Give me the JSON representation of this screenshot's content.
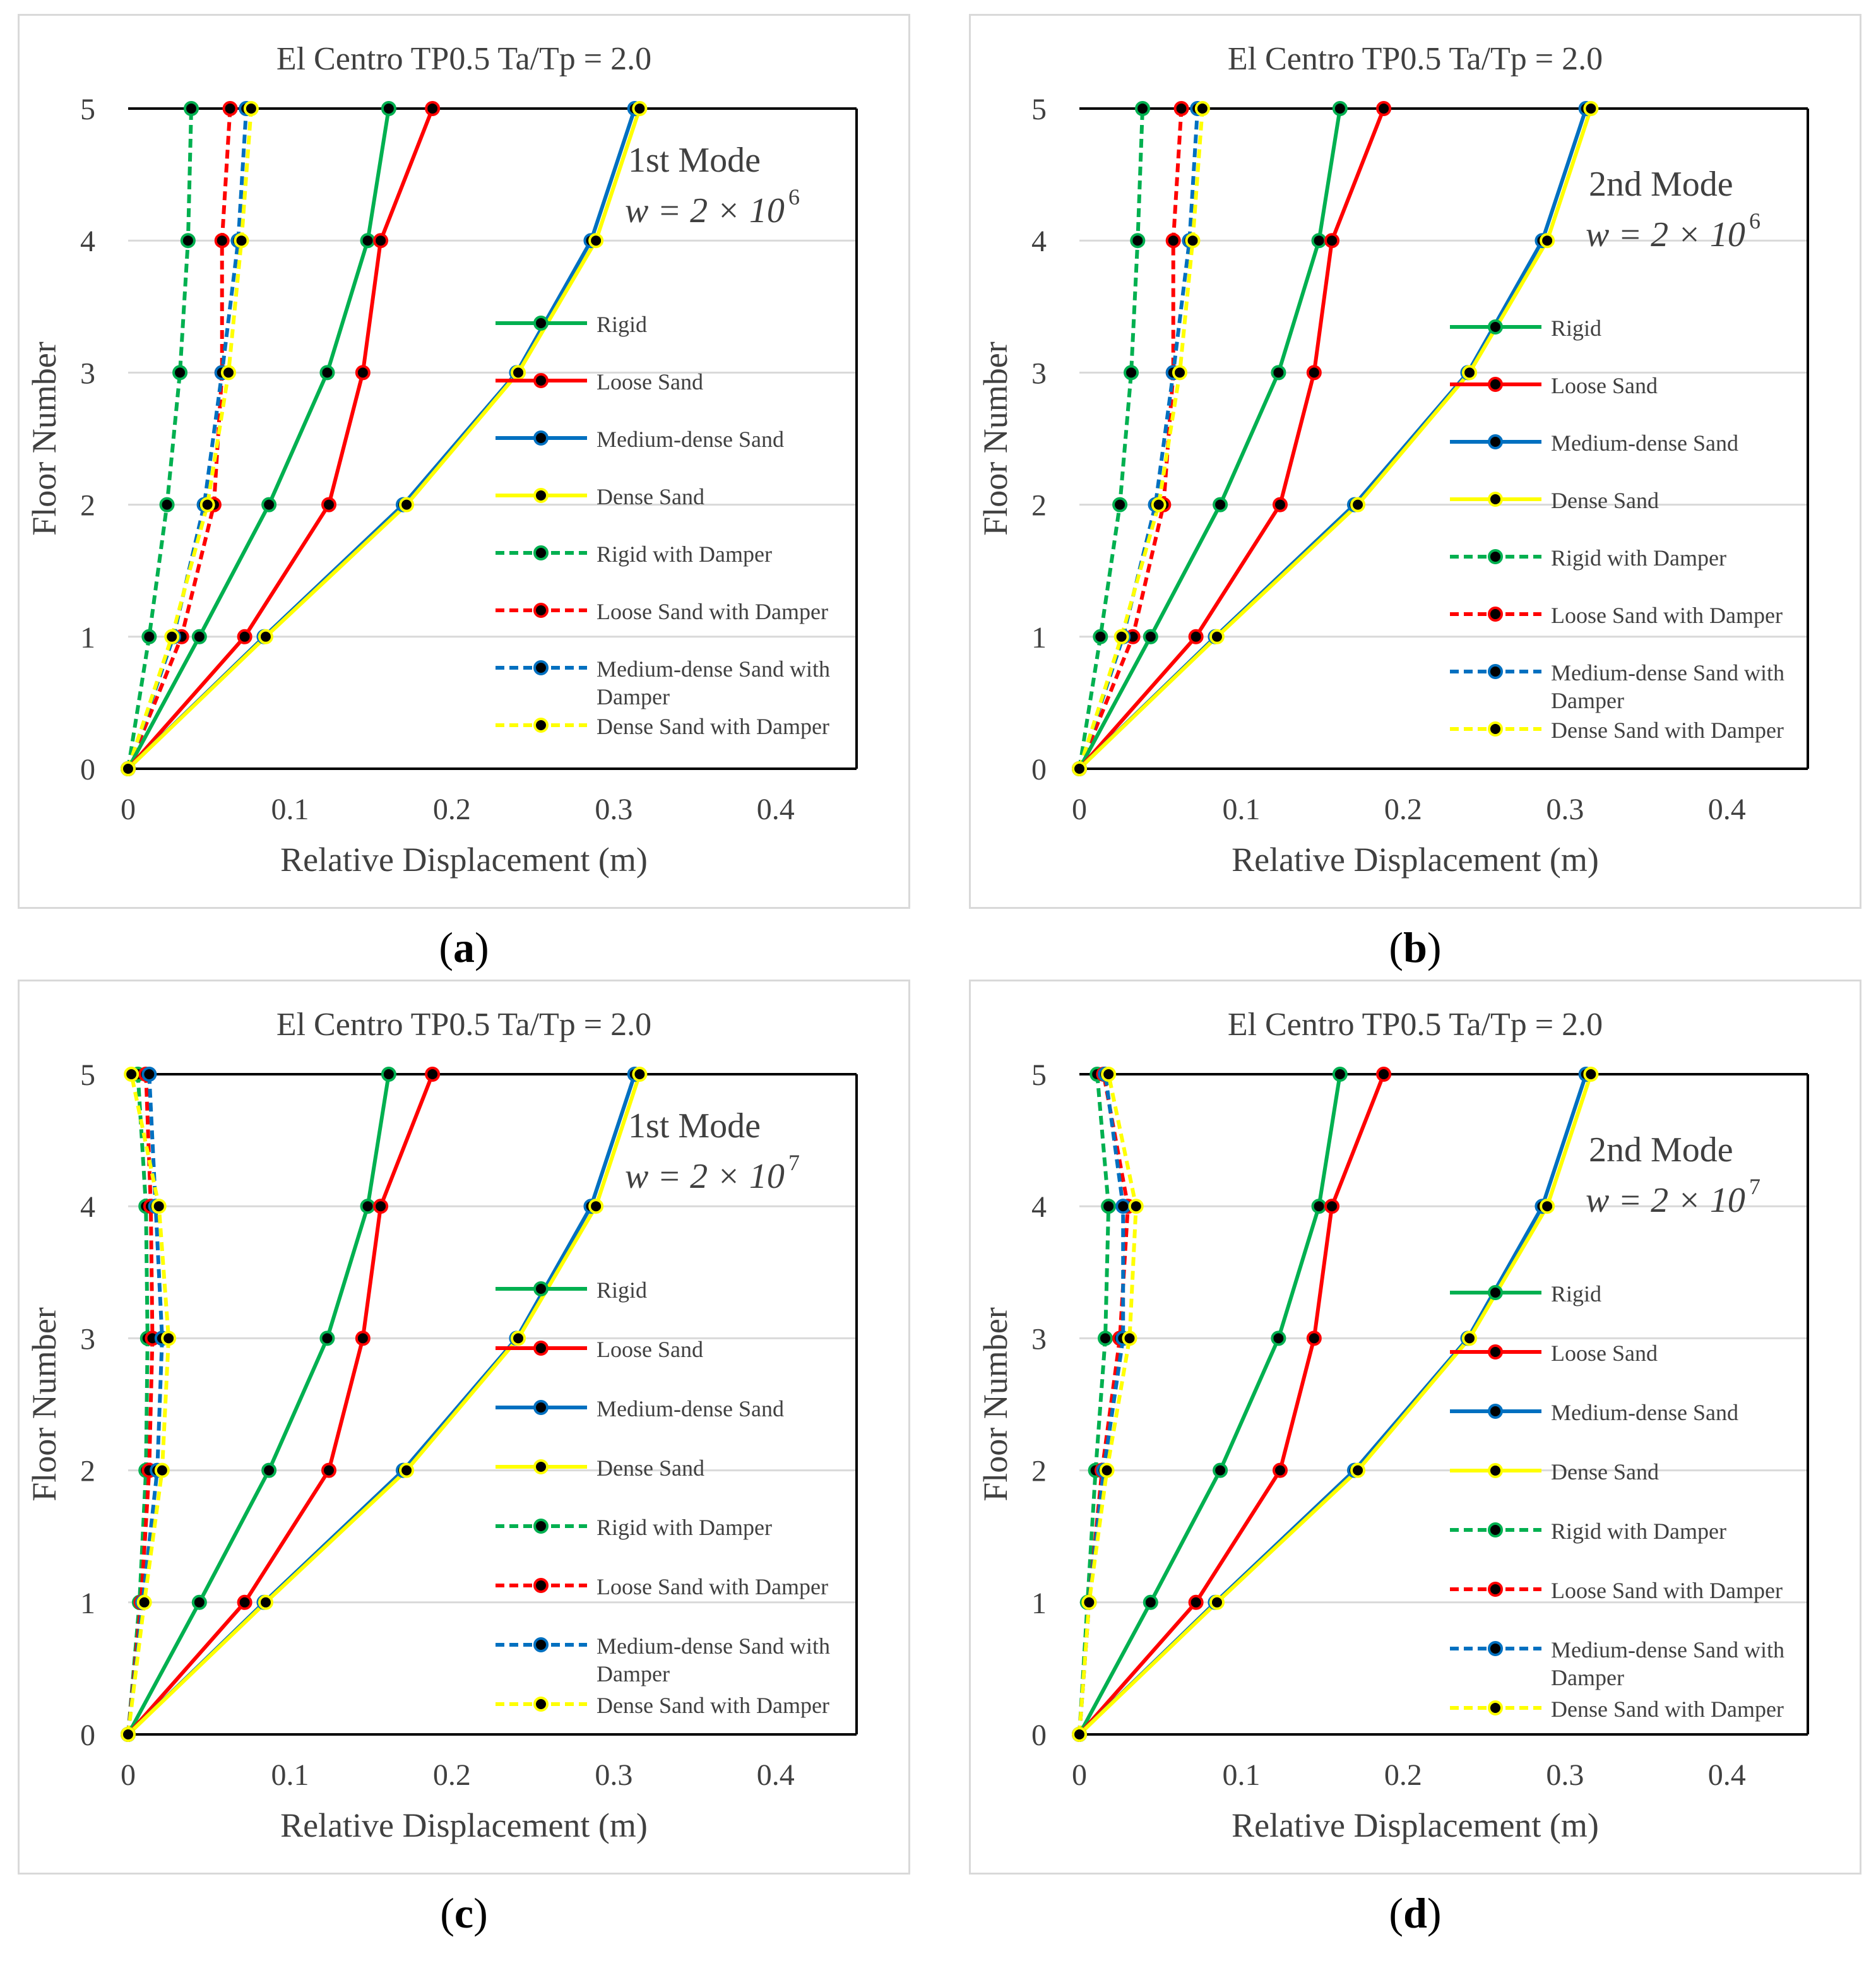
{
  "series_styles": [
    {
      "name": "Rigid",
      "color": "#00B050",
      "dash": false
    },
    {
      "name": "Loose Sand",
      "color": "#FF0000",
      "dash": false
    },
    {
      "name": "Medium-dense Sand",
      "color": "#0070C0",
      "dash": false
    },
    {
      "name": "Dense Sand",
      "color": "#FFFF00",
      "dash": false
    },
    {
      "name": "Rigid with Damper",
      "color": "#00B050",
      "dash": true
    },
    {
      "name": "Loose Sand with Damper",
      "color": "#FF0000",
      "dash": true
    },
    {
      "name": "Medium-dense Sand with Damper",
      "color": "#0070C0",
      "dash": true
    },
    {
      "name": "Dense Sand with Damper",
      "color": "#FFFF00",
      "dash": true
    }
  ],
  "chart_data": [
    {
      "type": "line",
      "caption": "a",
      "title": "El Centro TP0.5   Ta/Tp = 2.0",
      "annotation_mode": "1st Mode",
      "annotation_w": "w = 2 × 10",
      "annotation_exp": "6",
      "xlabel": "Relative Displacement (m)",
      "ylabel": "Floor Number",
      "xlim": [
        0,
        0.45
      ],
      "ylim": [
        0,
        5
      ],
      "xticks": [
        "0",
        "0.1",
        "0.2",
        "0.3",
        "0.4"
      ],
      "yticks": [
        "0",
        "1",
        "2",
        "3",
        "4",
        "5"
      ],
      "y": [
        0,
        1,
        2,
        3,
        4,
        5
      ],
      "series": [
        {
          "name": "Rigid",
          "values": [
            0,
            0.044,
            0.087,
            0.123,
            0.148,
            0.161
          ]
        },
        {
          "name": "Loose Sand",
          "values": [
            0,
            0.072,
            0.124,
            0.145,
            0.156,
            0.188
          ]
        },
        {
          "name": "Medium-dense Sand",
          "values": [
            0,
            0.084,
            0.17,
            0.24,
            0.286,
            0.313
          ]
        },
        {
          "name": "Dense Sand",
          "values": [
            0,
            0.085,
            0.172,
            0.241,
            0.289,
            0.316
          ]
        },
        {
          "name": "Rigid with Damper",
          "values": [
            0,
            0.013,
            0.024,
            0.032,
            0.037,
            0.039
          ]
        },
        {
          "name": "Loose Sand with Damper",
          "values": [
            0,
            0.033,
            0.053,
            0.058,
            0.058,
            0.063
          ]
        },
        {
          "name": "Medium-dense Sand with Damper",
          "values": [
            0,
            0.028,
            0.047,
            0.058,
            0.068,
            0.073
          ]
        },
        {
          "name": "Dense Sand with Damper",
          "values": [
            0,
            0.027,
            0.049,
            0.062,
            0.07,
            0.076
          ]
        }
      ]
    },
    {
      "type": "line",
      "caption": "b",
      "title": "El Centro TP0.5   Ta/Tp = 2.0",
      "annotation_mode": "2nd Mode",
      "annotation_w": "w = 2 × 10",
      "annotation_exp": "6",
      "xlabel": "Relative Displacement (m)",
      "ylabel": "Floor Number",
      "xlim": [
        0,
        0.45
      ],
      "ylim": [
        0,
        5
      ],
      "xticks": [
        "0",
        "0.1",
        "0.2",
        "0.3",
        "0.4"
      ],
      "yticks": [
        "0",
        "1",
        "2",
        "3",
        "4",
        "5"
      ],
      "y": [
        0,
        1,
        2,
        3,
        4,
        5
      ],
      "series": [
        {
          "name": "Rigid",
          "values": [
            0,
            0.044,
            0.087,
            0.123,
            0.148,
            0.161
          ]
        },
        {
          "name": "Loose Sand",
          "values": [
            0,
            0.072,
            0.124,
            0.145,
            0.156,
            0.188
          ]
        },
        {
          "name": "Medium-dense Sand",
          "values": [
            0,
            0.084,
            0.17,
            0.24,
            0.286,
            0.313
          ]
        },
        {
          "name": "Dense Sand",
          "values": [
            0,
            0.085,
            0.172,
            0.241,
            0.289,
            0.316
          ]
        },
        {
          "name": "Rigid with Damper",
          "values": [
            0,
            0.013,
            0.025,
            0.032,
            0.036,
            0.039
          ]
        },
        {
          "name": "Loose Sand with Damper",
          "values": [
            0,
            0.033,
            0.052,
            0.058,
            0.058,
            0.063
          ]
        },
        {
          "name": "Medium-dense Sand with Damper",
          "values": [
            0,
            0.027,
            0.047,
            0.058,
            0.068,
            0.073
          ]
        },
        {
          "name": "Dense Sand with Damper",
          "values": [
            0,
            0.026,
            0.049,
            0.062,
            0.07,
            0.076
          ]
        }
      ]
    },
    {
      "type": "line",
      "caption": "c",
      "title": "El Centro TP0.5   Ta/Tp = 2.0",
      "annotation_mode": "1st Mode",
      "annotation_w": "w = 2 × 10",
      "annotation_exp": "7",
      "xlabel": "Relative Displacement (m)",
      "ylabel": "Floor Number",
      "xlim": [
        0,
        0.45
      ],
      "ylim": [
        0,
        5
      ],
      "xticks": [
        "0",
        "0.1",
        "0.2",
        "0.3",
        "0.4"
      ],
      "yticks": [
        "0",
        "1",
        "2",
        "3",
        "4",
        "5"
      ],
      "y": [
        0,
        1,
        2,
        3,
        4,
        5
      ],
      "series": [
        {
          "name": "Rigid",
          "values": [
            0,
            0.044,
            0.087,
            0.123,
            0.148,
            0.161
          ]
        },
        {
          "name": "Loose Sand",
          "values": [
            0,
            0.072,
            0.124,
            0.145,
            0.156,
            0.188
          ]
        },
        {
          "name": "Medium-dense Sand",
          "values": [
            0,
            0.084,
            0.17,
            0.24,
            0.286,
            0.313
          ]
        },
        {
          "name": "Dense Sand",
          "values": [
            0,
            0.085,
            0.172,
            0.241,
            0.289,
            0.316
          ]
        },
        {
          "name": "Rigid with Damper",
          "values": [
            0,
            0.007,
            0.011,
            0.012,
            0.011,
            0.006
          ]
        },
        {
          "name": "Loose Sand with Damper",
          "values": [
            0,
            0.008,
            0.013,
            0.015,
            0.014,
            0.011
          ]
        },
        {
          "name": "Medium-dense Sand with Damper",
          "values": [
            0,
            0.009,
            0.018,
            0.021,
            0.017,
            0.013
          ]
        },
        {
          "name": "Dense Sand with Damper",
          "values": [
            0,
            0.01,
            0.021,
            0.025,
            0.019,
            0.002
          ]
        }
      ]
    },
    {
      "type": "line",
      "caption": "d",
      "title": "El Centro TP0.5   Ta/Tp = 2.0",
      "annotation_mode": "2nd Mode",
      "annotation_w": "w = 2 × 10",
      "annotation_exp": "7",
      "xlabel": "Relative Displacement (m)",
      "ylabel": "Floor Number",
      "xlim": [
        0,
        0.45
      ],
      "ylim": [
        0,
        5
      ],
      "xticks": [
        "0",
        "0.1",
        "0.2",
        "0.3",
        "0.4"
      ],
      "yticks": [
        "0",
        "1",
        "2",
        "3",
        "4",
        "5"
      ],
      "y": [
        0,
        1,
        2,
        3,
        4,
        5
      ],
      "series": [
        {
          "name": "Rigid",
          "values": [
            0,
            0.044,
            0.087,
            0.123,
            0.148,
            0.161
          ]
        },
        {
          "name": "Loose Sand",
          "values": [
            0,
            0.072,
            0.124,
            0.145,
            0.156,
            0.188
          ]
        },
        {
          "name": "Medium-dense Sand",
          "values": [
            0,
            0.084,
            0.17,
            0.24,
            0.286,
            0.313
          ]
        },
        {
          "name": "Dense Sand",
          "values": [
            0,
            0.085,
            0.172,
            0.241,
            0.289,
            0.316
          ]
        },
        {
          "name": "Rigid with Damper",
          "values": [
            0,
            0.005,
            0.01,
            0.016,
            0.018,
            0.011
          ]
        },
        {
          "name": "Loose Sand with Damper",
          "values": [
            0,
            0.006,
            0.014,
            0.025,
            0.03,
            0.015
          ]
        },
        {
          "name": "Medium-dense Sand with Damper",
          "values": [
            0,
            0.006,
            0.015,
            0.027,
            0.027,
            0.016
          ]
        },
        {
          "name": "Dense Sand with Damper",
          "values": [
            0,
            0.006,
            0.017,
            0.031,
            0.035,
            0.018
          ]
        }
      ]
    }
  ]
}
